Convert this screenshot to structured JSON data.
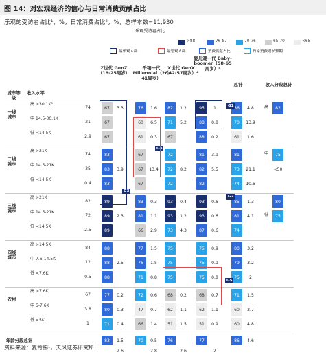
{
  "figure": {
    "label": "图 14：",
    "title": "对宏观经济的信心与日常消费贡献占比",
    "subtitle": "乐观的受访者占比¹，%，日常消费占比²，%，总样本数=11,930",
    "source": "资料来源：麦肯锡¹，天风证券研究所"
  },
  "legend": {
    "optimism_title": "乐观受访者占比",
    "ranges": [
      {
        "label": ">88",
        "color": "#1a2f6e"
      },
      {
        "label": "76-87",
        "color": "#2f6ad8"
      },
      {
        "label": "70-76",
        "color": "#2aa3e8"
      },
      {
        "label": "65-70",
        "color": "#d0d0d0"
      },
      {
        "label": "<65",
        "color": "#ededed"
      }
    ],
    "items": [
      {
        "label": "最乐观人群",
        "color": "#1a2f6e"
      },
      {
        "label": "最悲观人群",
        "color": "#e0474c"
      },
      {
        "label": "消费贡献占比",
        "color": "#2f6ad8"
      },
      {
        "label": "日常消费增长预期",
        "color": "#2aa3e8"
      }
    ]
  },
  "chart_data": {
    "type": "table",
    "columns": {
      "city_tier": "城市等级",
      "income_level": "收入水平",
      "total": "总计",
      "income_subtotal": "收入分段总计",
      "generations": [
        {
          "label": "Z世代 GenZ（18-25周岁）"
        },
        {
          "label": "千禧一代 Millennial（26-41周岁）"
        },
        {
          "label": "X世代 GenX（42-57周岁）⁴"
        },
        {
          "label": "婴儿潮一代 Baby-boomer（58-65周岁）⁴"
        }
      ]
    },
    "city_tiers": [
      {
        "name": "一线城市",
        "rows": [
          {
            "income": "高",
            "range": ">30.1K³",
            "income_share": 74,
            "values": [
              [
                67,
                3.3
              ],
              [
                76,
                1.6
              ],
              [
                82,
                1.2
              ],
              [
                95,
                1.0
              ]
            ],
            "total": [
              86,
              4.8
            ],
            "sub_label": "高",
            "subtotal": 82
          },
          {
            "income": "中",
            "range": "14.5-30.1K",
            "income_share": 21,
            "values": [
              [
                67,
                ""
              ],
              [
                60,
                6.5
              ],
              [
                71,
                5.2
              ],
              [
                88,
                0.8
              ]
            ],
            "total": [
              70,
              13.9
            ],
            "sub_label": "",
            "subtotal": ""
          },
          {
            "income": "低",
            "range": "<14.5K",
            "income_share": 2.9,
            "values": [
              [
                67,
                ""
              ],
              [
                61,
                0.3
              ],
              [
                67,
                ""
              ],
              [
                88,
                0.2
              ]
            ],
            "total": [
              61,
              1.6
            ],
            "sub_label": "",
            "subtotal": ""
          }
        ]
      },
      {
        "name": "二线城市",
        "rows": [
          {
            "income": "高",
            "range": ">21K",
            "income_share": 74,
            "values": [
              [
                83,
                ""
              ],
              [
                67,
                ""
              ],
              [
                72,
                ""
              ],
              [
                81,
                3.9
              ]
            ],
            "total": [
              81,
              ""
            ],
            "sub_label": "中",
            "subtotal": 75
          },
          {
            "income": "中",
            "range": "14.5-21K",
            "income_share": 35,
            "values": [
              [
                83,
                3.9
              ],
              [
                67,
                13.4
              ],
              [
                72,
                8.2
              ],
              [
                82,
                5.5
              ]
            ],
            "total": [
              73,
              21.1
            ],
            "sub_label": "",
            "subtotal": "<50"
          },
          {
            "income": "低",
            "range": "<14.5K",
            "income_share": 0.4,
            "values": [
              [
                83,
                ""
              ],
              [
                67,
                ""
              ],
              [
                72,
                ""
              ],
              [
                82,
                ""
              ]
            ],
            "total": [
              74,
              10.6
            ],
            "sub_label": "",
            "subtotal": ""
          }
        ]
      },
      {
        "name": "三线城市",
        "rows": [
          {
            "income": "高",
            "range": ">21K",
            "income_share": 82,
            "values": [
              [
                89,
                ""
              ],
              [
                83,
                0.3
              ],
              [
                93,
                0.4
              ],
              [
                93,
                0.6
              ]
            ],
            "total": [
              85,
              1.3
            ],
            "sub_label": "",
            "subtotal": 80
          },
          {
            "income": "中",
            "range": "14.5-21K",
            "income_share": 72,
            "values": [
              [
                89,
                2.3
              ],
              [
                81,
                1.1
              ],
              [
                93,
                1.2
              ],
              [
                93,
                0.6
              ]
            ],
            "total": [
              81,
              4.1
            ],
            "sub_label": "低",
            "subtotal": 75
          },
          {
            "income": "低",
            "range": "<14.5K",
            "income_share": 2.5,
            "values": [
              [
                89,
                ""
              ],
              [
                66,
                2.9
              ],
              [
                73,
                4.3
              ],
              [
                87,
                0.6
              ]
            ],
            "total": [
              74,
              ""
            ],
            "sub_label": "",
            "subtotal": ""
          }
        ]
      },
      {
        "name": "四线城市",
        "rows": [
          {
            "income": "高",
            "range": ">14.5K",
            "income_share": 84,
            "values": [
              [
                88,
                ""
              ],
              [
                77,
                1.5
              ],
              [
                75,
                ""
              ],
              [
                75,
                0.9
              ]
            ],
            "total": [
              80,
              3.2
            ],
            "sub_label": "",
            "subtotal": ""
          },
          {
            "income": "中",
            "range": "7.6-14.5K",
            "income_share": 12,
            "values": [
              [
                88,
                2.5
              ],
              [
                76,
                1.5
              ],
              [
                75,
                ""
              ],
              [
                75,
                0.9
              ]
            ],
            "total": [
              79,
              3.2
            ],
            "sub_label": "",
            "subtotal": ""
          },
          {
            "income": "低",
            "range": "<7.6K",
            "income_share": 0.5,
            "values": [
              [
                88,
                ""
              ],
              [
                71,
                0.8
              ],
              [
                75,
                ""
              ],
              [
                75,
                0.8
              ]
            ],
            "total": [
              75,
              2.0
            ],
            "sub_label": "",
            "subtotal": ""
          }
        ]
      },
      {
        "name": "农村",
        "rows": [
          {
            "income": "高",
            "range": ">7.6K",
            "income_share": 67,
            "values": [
              [
                77,
                0.2
              ],
              [
                72,
                0.6
              ],
              [
                68,
                0.2
              ],
              [
                68,
                0.7
              ]
            ],
            "total": [
              71,
              1.5
            ],
            "sub_label": "",
            "subtotal": ""
          },
          {
            "income": "中",
            "range": "5-7.6K",
            "income_share": 3.8,
            "values": [
              [
                80,
                0.3
              ],
              [
                47,
                0.7
              ],
              [
                62,
                1.1
              ],
              [
                62,
                1.1
              ]
            ],
            "total": [
              60,
              2.7
            ],
            "sub_label": "",
            "subtotal": ""
          },
          {
            "income": "低",
            "range": "<5K",
            "income_share": 1.0,
            "values": [
              [
                71,
                0.4
              ],
              [
                66,
                1.4
              ],
              [
                51,
                1.5
              ],
              [
                51,
                0.9
              ]
            ],
            "total": [
              60,
              4.8
            ],
            "sub_label": "",
            "subtotal": ""
          }
        ]
      }
    ],
    "age_total": {
      "label": "年龄分段总计",
      "values": [
        [
          83,
          1.5
        ],
        [
          70,
          0.5
        ],
        [
          76,
          ""
        ],
        [
          77,
          ""
        ]
      ],
      "total": [
        86,
        4.6
      ],
      "sub": [
        2.6,
        2.8,
        2.6,
        2.0
      ]
    },
    "markers": [
      "G1",
      "G2",
      "G3",
      "G4",
      "G5"
    ]
  }
}
